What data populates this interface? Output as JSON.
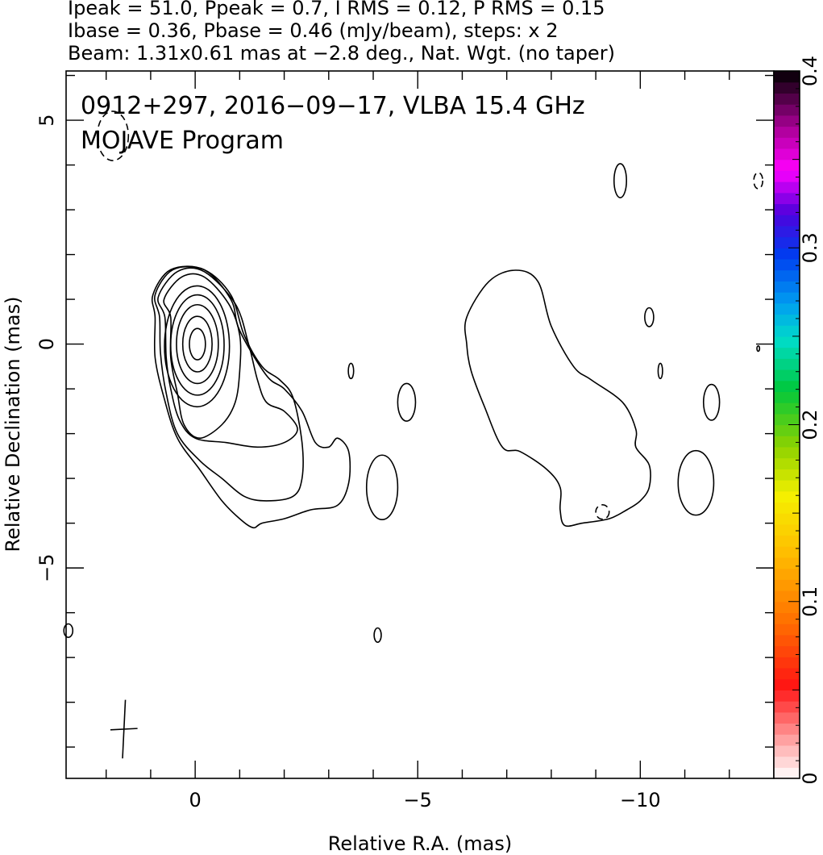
{
  "header": {
    "line1": "Ipeak = 51.0, Ppeak = 0.7, I RMS = 0.12, P RMS = 0.15",
    "line2": "Ibase = 0.36, Pbase = 0.46 (mJy/beam), steps: x 2",
    "line3": "Beam: 1.31x0.61 mas at −2.8 deg., Nat. Wgt. (no taper)"
  },
  "annotation": {
    "source": "0912+297, 2016−09−17, VLBA 15.4 GHz",
    "program": "MOJAVE Program"
  },
  "chart_data": {
    "type": "contour",
    "xlabel": "Relative R.A. (mas)",
    "ylabel": "Relative Declination (mas)",
    "xlim": [
      2.9,
      -13.0
    ],
    "ylim": [
      -9.7,
      6.1
    ],
    "x_ticks": [
      {
        "value": 0,
        "label": "0"
      },
      {
        "value": -5,
        "label": "−5"
      },
      {
        "value": -10,
        "label": "−10"
      }
    ],
    "y_ticks": [
      {
        "value": 5,
        "label": "5"
      },
      {
        "value": 0,
        "label": "0"
      },
      {
        "value": -5,
        "label": "−5"
      }
    ],
    "colorbar": {
      "min": 0,
      "max": 0.4,
      "ticks": [
        {
          "value": 0,
          "label": "0"
        },
        {
          "value": 0.1,
          "label": "0.1"
        },
        {
          "value": 0.2,
          "label": "0.2"
        },
        {
          "value": 0.3,
          "label": "0.3"
        },
        {
          "value": 0.4,
          "label": "0.4"
        }
      ]
    },
    "beam": {
      "major_mas": 1.31,
      "minor_mas": 0.61,
      "pa_deg": -2.8,
      "center": [
        1.6,
        -8.6
      ]
    },
    "core_contours": [
      {
        "cx": -0.05,
        "cy": 0.0,
        "rx": 0.18,
        "ry": 0.35
      },
      {
        "cx": -0.05,
        "cy": 0.0,
        "rx": 0.33,
        "ry": 0.62
      },
      {
        "cx": -0.05,
        "cy": 0.0,
        "rx": 0.47,
        "ry": 0.88
      },
      {
        "cx": -0.05,
        "cy": -0.02,
        "rx": 0.6,
        "ry": 1.12
      },
      {
        "cx": -0.04,
        "cy": -0.05,
        "rx": 0.73,
        "ry": 1.35
      }
    ],
    "jet_contours": [
      [
        [
          0.55,
          0.6
        ],
        [
          0.7,
          1.0
        ],
        [
          0.3,
          1.5
        ],
        [
          -0.2,
          1.5
        ],
        [
          -0.75,
          0.9
        ],
        [
          -1.0,
          0.2
        ],
        [
          -1.0,
          -0.6
        ],
        [
          -0.9,
          -1.3
        ],
        [
          -0.6,
          -1.8
        ],
        [
          -0.1,
          -2.1
        ],
        [
          0.25,
          -1.8
        ],
        [
          0.4,
          -1.1
        ],
        [
          0.55,
          -0.3
        ]
      ],
      [
        [
          0.68,
          0.6
        ],
        [
          0.83,
          1.05
        ],
        [
          0.4,
          1.62
        ],
        [
          -0.2,
          1.62
        ],
        [
          -0.9,
          0.9
        ],
        [
          -1.2,
          0.0
        ],
        [
          -1.4,
          -0.8
        ],
        [
          -1.6,
          -1.3
        ],
        [
          -2.0,
          -1.5
        ],
        [
          -2.3,
          -1.9
        ],
        [
          -2.0,
          -2.2
        ],
        [
          -1.4,
          -2.3
        ],
        [
          -0.7,
          -2.2
        ],
        [
          0.0,
          -2.1
        ],
        [
          0.35,
          -1.7
        ],
        [
          0.55,
          -1.0
        ],
        [
          0.65,
          -0.3
        ]
      ],
      [
        [
          0.8,
          0.6
        ],
        [
          0.9,
          1.1
        ],
        [
          0.5,
          1.66
        ],
        [
          -0.2,
          1.66
        ],
        [
          -0.8,
          1.1
        ],
        [
          -1.1,
          0.2
        ],
        [
          -1.5,
          -0.5
        ],
        [
          -1.9,
          -0.8
        ],
        [
          -2.2,
          -1.2
        ],
        [
          -2.4,
          -2.2
        ],
        [
          -2.4,
          -3.0
        ],
        [
          -2.2,
          -3.4
        ],
        [
          -1.6,
          -3.5
        ],
        [
          -1.1,
          -3.4
        ],
        [
          -0.6,
          -3.0
        ],
        [
          -0.1,
          -2.6
        ],
        [
          0.4,
          -2.0
        ],
        [
          0.65,
          -1.1
        ],
        [
          0.78,
          -0.2
        ]
      ],
      [
        [
          0.9,
          0.6
        ],
        [
          0.95,
          1.1
        ],
        [
          0.55,
          1.66
        ],
        [
          -0.2,
          1.66
        ],
        [
          -0.8,
          1.0
        ],
        [
          -1.0,
          0.3
        ],
        [
          -1.6,
          -0.7
        ],
        [
          -2.0,
          -1.0
        ],
        [
          -2.4,
          -1.5
        ],
        [
          -2.7,
          -2.2
        ],
        [
          -3.0,
          -2.3
        ],
        [
          -3.2,
          -2.1
        ],
        [
          -3.45,
          -2.4
        ],
        [
          -3.45,
          -3.1
        ],
        [
          -3.2,
          -3.6
        ],
        [
          -2.6,
          -3.7
        ],
        [
          -2.0,
          -3.9
        ],
        [
          -1.5,
          -4.0
        ],
        [
          -1.3,
          -4.1
        ],
        [
          -1.0,
          -3.9
        ],
        [
          -0.6,
          -3.5
        ],
        [
          -0.1,
          -2.8
        ],
        [
          0.4,
          -2.1
        ],
        [
          0.7,
          -1.2
        ],
        [
          0.9,
          -0.3
        ]
      ]
    ],
    "outer_lobe": [
      [
        -6.1,
        0.6
      ],
      [
        -6.6,
        1.4
      ],
      [
        -7.2,
        1.65
      ],
      [
        -7.7,
        1.4
      ],
      [
        -8.0,
        0.4
      ],
      [
        -8.5,
        -0.5
      ],
      [
        -8.9,
        -0.8
      ],
      [
        -9.6,
        -1.3
      ],
      [
        -9.9,
        -1.9
      ],
      [
        -9.9,
        -2.3
      ],
      [
        -10.2,
        -2.7
      ],
      [
        -10.2,
        -3.2
      ],
      [
        -10.0,
        -3.5
      ],
      [
        -9.7,
        -3.7
      ],
      [
        -9.3,
        -3.9
      ],
      [
        -8.7,
        -4.0
      ],
      [
        -8.3,
        -4.05
      ],
      [
        -8.2,
        -3.7
      ],
      [
        -8.2,
        -3.2
      ],
      [
        -7.9,
        -2.8
      ],
      [
        -7.3,
        -2.4
      ],
      [
        -6.9,
        -2.3
      ],
      [
        -6.5,
        -1.4
      ],
      [
        -6.2,
        -0.6
      ],
      [
        -6.1,
        0.0
      ]
    ],
    "islands": [
      {
        "cx": -4.2,
        "cy": -3.2,
        "rx": 0.35,
        "ry": 0.72
      },
      {
        "cx": -4.75,
        "cy": -1.3,
        "rx": 0.2,
        "ry": 0.42
      },
      {
        "cx": -3.5,
        "cy": -0.6,
        "rx": 0.06,
        "ry": 0.17
      },
      {
        "cx": -4.1,
        "cy": -6.5,
        "rx": 0.08,
        "ry": 0.16
      },
      {
        "cx": -9.55,
        "cy": 3.65,
        "rx": 0.14,
        "ry": 0.38
      },
      {
        "cx": -10.2,
        "cy": 0.6,
        "rx": 0.1,
        "ry": 0.21
      },
      {
        "cx": -10.45,
        "cy": -0.6,
        "rx": 0.05,
        "ry": 0.17
      },
      {
        "cx": -11.6,
        "cy": -1.3,
        "rx": 0.18,
        "ry": 0.4
      },
      {
        "cx": -11.25,
        "cy": -3.1,
        "rx": 0.4,
        "ry": 0.72
      },
      {
        "cx": -12.65,
        "cy": -0.1,
        "rx": 0.03,
        "ry": 0.06
      },
      {
        "cx": 2.85,
        "cy": -6.4,
        "rx": 0.1,
        "ry": 0.15
      }
    ],
    "negative_contours": [
      {
        "cx": 1.85,
        "cy": 4.65,
        "rx": 0.35,
        "ry": 0.55
      },
      {
        "cx": -12.65,
        "cy": 3.65,
        "rx": 0.1,
        "ry": 0.18
      },
      {
        "cx": -9.15,
        "cy": -3.75,
        "rx": 0.15,
        "ry": 0.16
      }
    ]
  }
}
